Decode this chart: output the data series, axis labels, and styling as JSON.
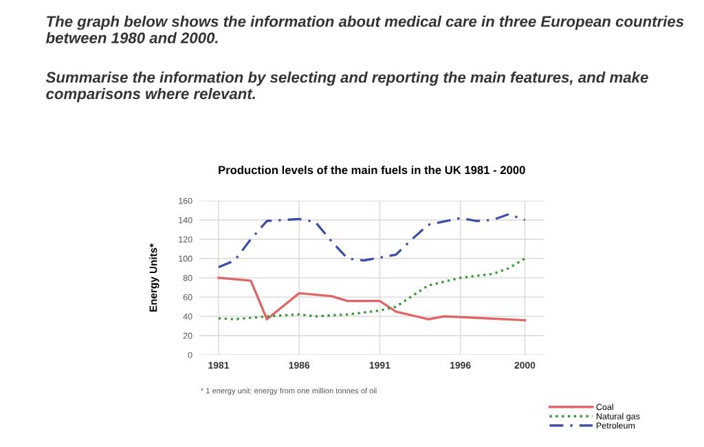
{
  "chart_data": {
    "type": "line",
    "title": "Production levels of the main fuels in the UK 1981 - 2000",
    "ylabel": "Energy Units*",
    "annotations": [
      "The graph below shows the information about medical care in three European countries between 1980 and 2000.",
      "Summarise the information by selecting and reporting the main features, and make comparisons where relevant.",
      "* 1 energy unit: energy from one million tonnes of oil"
    ],
    "xlim": [
      1979.8,
      2001.2
    ],
    "xticks": [
      1981,
      1986,
      1991,
      1996,
      2000
    ],
    "ylim": [
      0,
      160
    ],
    "yticks": [
      0,
      20,
      40,
      60,
      80,
      100,
      120,
      140,
      160
    ],
    "grid": true,
    "legend": "bottom right",
    "series": [
      {
        "name": "Coal",
        "color": "#e06666",
        "line_style": "solid",
        "x": [
          1981,
          1983,
          1984,
          1986,
          1988,
          1989,
          1991,
          1992,
          1994,
          1995,
          2000
        ],
        "values": [
          80,
          77,
          37,
          64,
          61,
          56,
          56,
          45,
          37,
          40,
          36
        ]
      },
      {
        "name": "Natural gas",
        "color": "#3a9a3a",
        "line_style": "dotted",
        "x": [
          1981,
          1982,
          1984,
          1986,
          1987,
          1989,
          1991,
          1992,
          1994,
          1996,
          1998,
          1999,
          2000
        ],
        "values": [
          38,
          37,
          40,
          42,
          40,
          42,
          46,
          50,
          72,
          80,
          84,
          90,
          100
        ]
      },
      {
        "name": "Petroleum",
        "color": "#3f4fa8",
        "line_style": "dashdot",
        "x": [
          1981,
          1982,
          1983,
          1984,
          1985,
          1986,
          1987,
          1988,
          1989,
          1990,
          1992,
          1993,
          1994,
          1996,
          1997,
          1998,
          1999,
          2000
        ],
        "values": [
          91,
          98,
          120,
          139,
          140,
          141,
          138,
          118,
          100,
          98,
          104,
          120,
          135,
          142,
          139,
          140,
          146,
          140
        ]
      }
    ]
  }
}
